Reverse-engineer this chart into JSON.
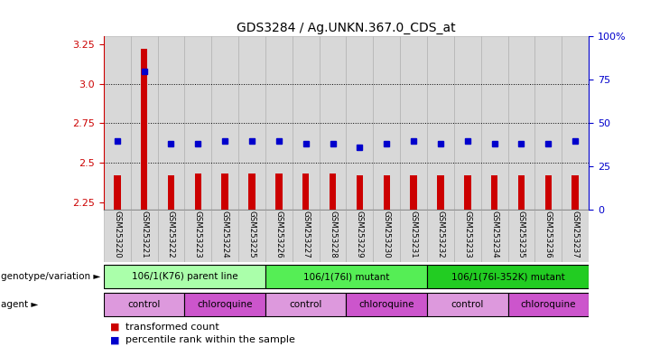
{
  "title": "GDS3284 / Ag.UNKN.367.0_CDS_at",
  "samples": [
    "GSM253220",
    "GSM253221",
    "GSM253222",
    "GSM253223",
    "GSM253224",
    "GSM253225",
    "GSM253226",
    "GSM253227",
    "GSM253228",
    "GSM253229",
    "GSM253230",
    "GSM253231",
    "GSM253232",
    "GSM253233",
    "GSM253234",
    "GSM253235",
    "GSM253236",
    "GSM253237"
  ],
  "bar_values": [
    2.42,
    3.22,
    2.42,
    2.43,
    2.43,
    2.43,
    2.43,
    2.43,
    2.43,
    2.42,
    2.42,
    2.42,
    2.42,
    2.42,
    2.42,
    2.42,
    2.42,
    2.42
  ],
  "dot_values_pct": [
    40,
    80,
    38,
    38,
    40,
    40,
    40,
    38,
    38,
    36,
    38,
    40,
    38,
    40,
    38,
    38,
    38,
    40
  ],
  "ylim_left": [
    2.2,
    3.3
  ],
  "yticks_left": [
    2.25,
    2.5,
    2.75,
    3.0,
    3.25
  ],
  "yticks_right": [
    0,
    25,
    50,
    75,
    100
  ],
  "bar_color": "#cc0000",
  "dot_color": "#0000cc",
  "grid_values": [
    3.0,
    2.75,
    2.5
  ],
  "bar_width": 0.25,
  "genotype_groups": [
    {
      "label": "106/1(K76) parent line",
      "start": 0,
      "end": 5,
      "color": "#aaffaa"
    },
    {
      "label": "106/1(76I) mutant",
      "start": 6,
      "end": 11,
      "color": "#55ee55"
    },
    {
      "label": "106/1(76I-352K) mutant",
      "start": 12,
      "end": 17,
      "color": "#22cc22"
    }
  ],
  "agent_groups": [
    {
      "label": "control",
      "start": 0,
      "end": 2,
      "color": "#dd99dd"
    },
    {
      "label": "chloroquine",
      "start": 3,
      "end": 5,
      "color": "#cc55cc"
    },
    {
      "label": "control",
      "start": 6,
      "end": 8,
      "color": "#dd99dd"
    },
    {
      "label": "chloroquine",
      "start": 9,
      "end": 11,
      "color": "#cc55cc"
    },
    {
      "label": "control",
      "start": 12,
      "end": 14,
      "color": "#dd99dd"
    },
    {
      "label": "chloroquine",
      "start": 15,
      "end": 17,
      "color": "#cc55cc"
    }
  ],
  "legend_items": [
    {
      "label": "transformed count",
      "color": "#cc0000"
    },
    {
      "label": "percentile rank within the sample",
      "color": "#0000cc"
    }
  ],
  "col_bg_color": "#d8d8d8",
  "col_border_color": "#aaaaaa"
}
